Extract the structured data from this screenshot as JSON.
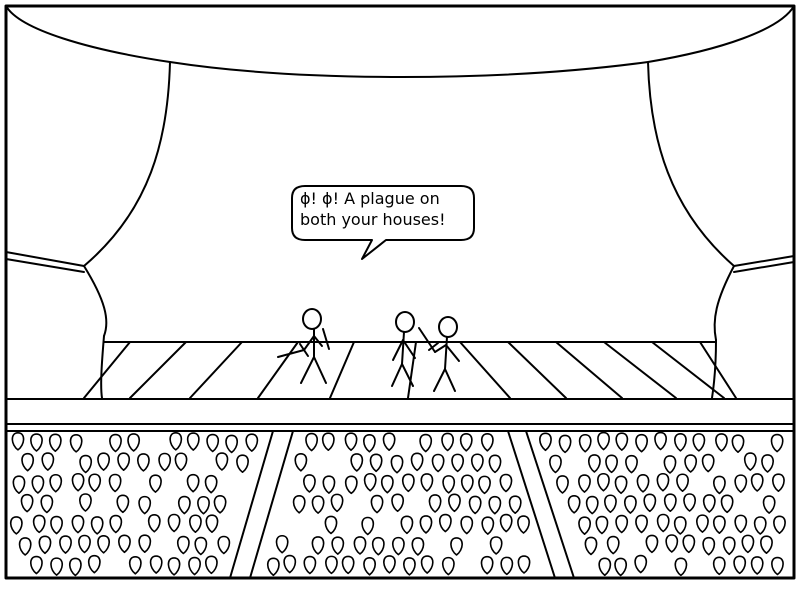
{
  "speech_bubble": {
    "line1": "ϕ! ϕ! A plague on",
    "line2": "both your houses!"
  },
  "stage": {
    "characters": [
      "speaking-stick-figure",
      "stick-figure-middle",
      "stick-figure-right"
    ]
  },
  "audience": {
    "sections": [
      "left",
      "center",
      "right"
    ]
  },
  "colors": {
    "ink": "#000000",
    "paper": "#ffffff"
  }
}
